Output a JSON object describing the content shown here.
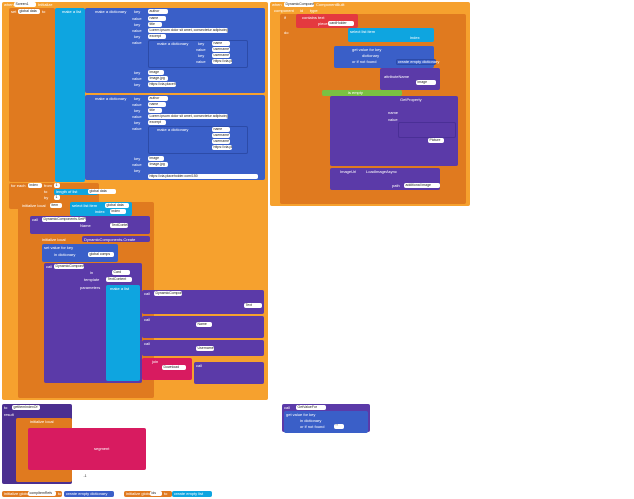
{
  "colors": {
    "event": "#f6a12e",
    "control": "#e07a1f",
    "dictionary": "#3a5fc8",
    "component": "#5b3aa8",
    "text": "#e4393f",
    "list": "#0ea5e0",
    "logic": "#7ac142",
    "math": "#1e2f8a"
  },
  "block1": {
    "when": "when",
    "component": "Screen1",
    "event": "Initialize",
    "set": "set",
    "global_var": "global data",
    "to": "to",
    "make_list": "make a list",
    "make_dict": "make a dictionary",
    "key": "key",
    "value": "value",
    "author": "author",
    "title": "title",
    "excerpt_label": "excerpt",
    "lorem": "Lorem ipsum dolor sit amet, consectetur adipiscing...",
    "img_label": "image",
    "img_value": "Image.jpg",
    "name": "name",
    "username": "username",
    "image_url": "https://via.placeholder.com/150",
    "for_each": "for each",
    "index": "index",
    "from": "from",
    "to_kw": "to",
    "by": "by",
    "one": "1",
    "length_of_list": "length of list",
    "list_kw": "list",
    "get": "get",
    "get_data": "global data",
    "initialize_local": "initialize local",
    "item": "item",
    "in": "in",
    "select_list_item": "select list item",
    "list": "list",
    "index_kw": "index",
    "call": "call",
    "component_set_property": "DynamicComponents.SetProperty",
    "create": "DynamicComponents.Create",
    "in_kw": "in",
    "component_kw": "component",
    "set_value_for_key": "set value for key",
    "in_dictionary": "in dictionary",
    "panel": "Card",
    "template": "template",
    "parameters": "parameters",
    "TextContent": "TextContent",
    "Text": "Text",
    "Name": "Name",
    "Username": "Username",
    "global_comps": "global comps",
    "join": "join",
    "download": "Download",
    "get_value": "get value"
  },
  "block2": {
    "when": "when",
    "component": "DynamicComponents",
    "event": "ComponentBuilt",
    "component_kw": "component",
    "id_kw": "id",
    "type_kw": "type",
    "if": "if",
    "contains_text": "contains text",
    "piece": "piece",
    "cardHolder": "cardHolder",
    "do": "do",
    "select_list_item": "select list item",
    "list": "list",
    "index": "index",
    "get_value_for_key": "get value for key",
    "dictionary": "dictionary",
    "or_if_not_found": "or if not found",
    "create_empty": "create empty dictionary",
    "attributeName": "attributeName",
    "image": "image",
    "is_empty": "is empty",
    "GetProperty": "GetProperty",
    "name": "name",
    "value": "value",
    "propertyName": "Picture",
    "image_url": "ImageUrl",
    "Load_image_async": "LoadImageAsync",
    "path": "path",
    "additional": "additional image"
  },
  "block3": {
    "to": "to",
    "procedure": "getItemIndexOf",
    "result": "result",
    "initialize_local": "initialize local",
    "i": "i",
    "to_kw": "to",
    "one": "1",
    "in": "in",
    "length": "length",
    "from": "from",
    "for": "for",
    "by": "by",
    "if": "if",
    "segment": "segment",
    "text": "text",
    "start": "start",
    "length_kw": "length",
    "then": "then",
    "else": "else",
    "get": "get",
    "minus_one": "-1"
  },
  "block4": {
    "call": "call",
    "method": "GetValueFor",
    "key": "key",
    "dictionary": "dictionary",
    "get_value_for_key": "get value for key",
    "in_dictionary": "in dictionary",
    "or_if_not_found": "or if not found",
    "empty": "\"\""
  },
  "bottom": {
    "init_global_1": "initialize global",
    "var1": "compItemRefs",
    "to1": "to",
    "create_dict": "create empty dictionary",
    "init_global_2": "initialize global",
    "var2": "ids",
    "to2": "to",
    "create_list": "create empty list"
  }
}
